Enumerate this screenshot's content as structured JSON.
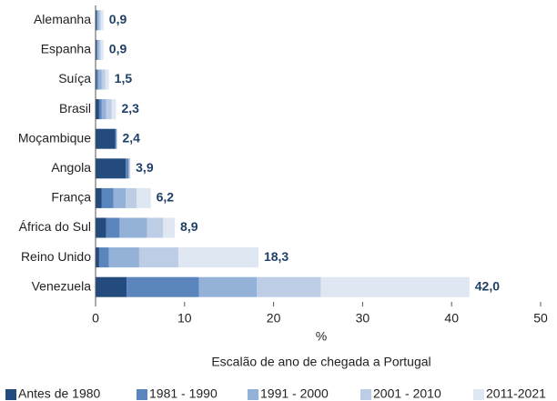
{
  "chart_data": {
    "type": "stacked_barh",
    "xlabel": "%",
    "legend_title": "Escalão de ano de chegada a Portugal",
    "categories": [
      "Alemanha",
      "Espanha",
      "Suíça",
      "Brasil",
      "Moçambique",
      "Angola",
      "França",
      "África do Sul",
      "Reino Unido",
      "Venezuela"
    ],
    "series": [
      {
        "name": "Antes de 1980",
        "color": "#234b7d",
        "values": [
          0.1,
          0.1,
          0.1,
          0.4,
          2.2,
          3.4,
          0.7,
          1.2,
          0.4,
          3.5
        ]
      },
      {
        "name": "1981 - 1990",
        "color": "#5a85bd",
        "values": [
          0.1,
          0.1,
          0.2,
          0.3,
          0.1,
          0.3,
          1.3,
          1.5,
          1.1,
          8.1
        ]
      },
      {
        "name": "1991 - 2000",
        "color": "#94b1d7",
        "values": [
          0.2,
          0.2,
          0.4,
          0.5,
          0.1,
          0.1,
          1.4,
          3.1,
          3.4,
          6.5
        ]
      },
      {
        "name": "2001 - 2010",
        "color": "#bccde5",
        "values": [
          0.2,
          0.2,
          0.4,
          0.6,
          0.0,
          0.1,
          1.2,
          1.8,
          4.4,
          7.2
        ]
      },
      {
        "name": "2011-2021",
        "color": "#dfe7f2",
        "values": [
          0.3,
          0.3,
          0.4,
          0.5,
          0.0,
          0.0,
          1.6,
          1.3,
          9.0,
          16.7
        ]
      }
    ],
    "totals": [
      0.9,
      0.9,
      1.5,
      2.3,
      2.4,
      3.9,
      6.2,
      8.9,
      18.3,
      42.0
    ],
    "total_labels": [
      "0,9",
      "0,9",
      "1,5",
      "2,3",
      "2,4",
      "3,9",
      "6,2",
      "8,9",
      "18,3",
      "42,0"
    ],
    "xlim": [
      0,
      50
    ],
    "xticks": [
      0,
      10,
      20,
      30,
      40,
      50
    ],
    "legend": "bottom"
  }
}
